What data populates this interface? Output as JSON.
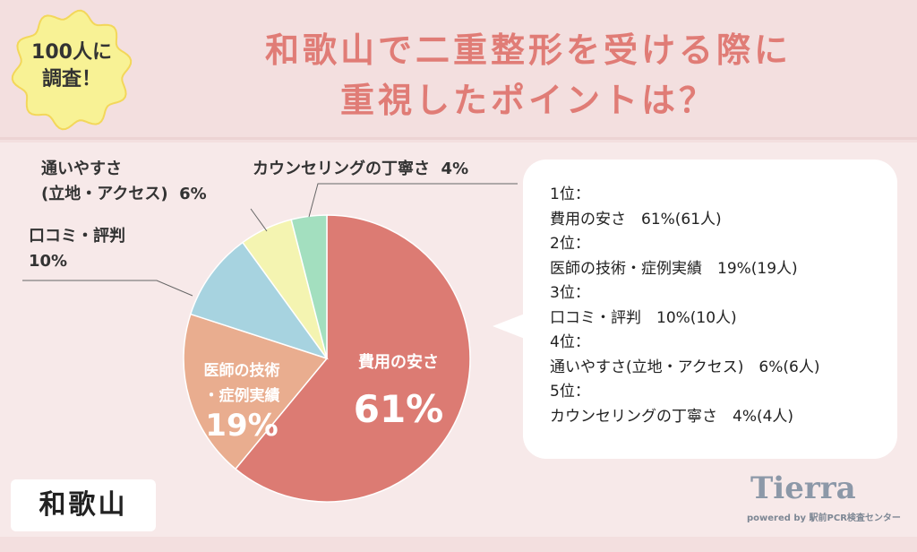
{
  "header": {
    "badge_line1": "100人に",
    "badge_line2": "調査！",
    "title_line1": "和歌山で二重整形を受ける際に",
    "title_line2": "重視したポイントは？"
  },
  "chart_data": {
    "type": "pie",
    "title": "和歌山で二重整形を受ける際に重視したポイントは？",
    "start": "12 o'clock",
    "direction": "clockwise",
    "slices": [
      {
        "label": "費用の安さ",
        "value": 61,
        "display": "61%",
        "color": "#dc7b73"
      },
      {
        "label": "医師の技術・症例実績",
        "value": 19,
        "display": "19%",
        "color": "#e9ad8f"
      },
      {
        "label": "口コミ・評判",
        "value": 10,
        "display": "10%",
        "color": "#a7d3e0"
      },
      {
        "label": "通いやすさ(立地・アクセス)",
        "value": 6,
        "display": "6%",
        "color": "#f4f4b1"
      },
      {
        "label": "カウンセリングの丁寧さ",
        "value": 4,
        "display": "4%",
        "color": "#a3dfbf"
      }
    ]
  },
  "labels": {
    "s0": "費用の安さ",
    "s1a": "医師の技術",
    "s1b": "・症例実績",
    "s2a": "口コミ・評判",
    "s3a": "通いやすさ",
    "s3b": "(立地・アクセス)",
    "s4": "カウンセリングの丁寧さ"
  },
  "ranking": [
    {
      "rank": "1位：",
      "text": "費用の安さ　61%(61人)"
    },
    {
      "rank": "2位：",
      "text": "医師の技術・症例実績　19%(19人)"
    },
    {
      "rank": "3位：",
      "text": "口コミ・評判　10%(10人)"
    },
    {
      "rank": "4位：",
      "text": "通いやすさ(立地・アクセス)　6%(6人)"
    },
    {
      "rank": "5位：",
      "text": "カウンセリングの丁寧さ　4%(4人)"
    }
  ],
  "region": "和歌山",
  "logo": {
    "name": "Tierra",
    "sub": "powered by 駅前PCR検査センター"
  }
}
